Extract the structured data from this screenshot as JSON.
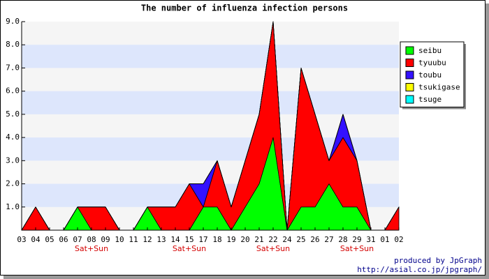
{
  "chart_data": {
    "type": "stacked_area",
    "title": "The number of influenza infection persons",
    "categories": [
      "03",
      "04",
      "05",
      "06",
      "07",
      "08",
      "09",
      "10",
      "11",
      "12",
      "13",
      "14",
      "15",
      "17",
      "18",
      "19",
      "20",
      "21",
      "22",
      "24",
      "25",
      "26",
      "27",
      "28",
      "29",
      "31",
      "01",
      "02"
    ],
    "category_sublabels": [
      null,
      null,
      null,
      null,
      null,
      "Sat+Sun",
      null,
      null,
      null,
      null,
      null,
      null,
      "Sat+Sun",
      null,
      null,
      null,
      null,
      null,
      "Sat+Sun",
      null,
      null,
      null,
      null,
      null,
      "Sat+Sun",
      null,
      null,
      null
    ],
    "series": [
      {
        "name": "seibu",
        "color": "#00ff00",
        "values": [
          0,
          0,
          0,
          0,
          1,
          0,
          0,
          0,
          0,
          1,
          0,
          0,
          0,
          1,
          1,
          0,
          1,
          2,
          4,
          0,
          1,
          1,
          2,
          1,
          1,
          0,
          0,
          0
        ]
      },
      {
        "name": "tyuubu",
        "color": "#ff0000",
        "values": [
          0,
          1,
          0,
          0,
          0,
          1,
          1,
          0,
          0,
          0,
          1,
          1,
          2,
          0,
          2,
          1,
          2,
          3,
          5,
          0,
          6,
          4,
          1,
          3,
          2,
          0,
          0,
          1
        ]
      },
      {
        "name": "toubu",
        "color": "#3311ff",
        "values": [
          0,
          0,
          0,
          0,
          0,
          0,
          0,
          0,
          0,
          0,
          0,
          0,
          0,
          1,
          0,
          0,
          0,
          0,
          0,
          0,
          0,
          0,
          0,
          1,
          0,
          0,
          0,
          0
        ]
      },
      {
        "name": "tsukigase",
        "color": "#ffff00",
        "values": [
          0,
          0,
          0,
          0,
          0,
          0,
          0,
          0,
          0,
          0,
          0,
          0,
          0,
          0,
          0,
          0,
          0,
          0,
          0,
          0,
          0,
          0,
          0,
          0,
          0,
          0,
          0,
          0
        ]
      },
      {
        "name": "tsuge",
        "color": "#00ffff",
        "values": [
          0,
          0,
          0,
          0,
          0,
          0,
          0,
          0,
          0,
          0,
          0,
          0,
          0,
          0,
          0,
          0,
          0,
          0,
          0,
          0,
          0,
          0,
          0,
          0,
          0,
          0,
          0,
          0
        ]
      }
    ],
    "ylim": [
      0,
      9
    ],
    "yticks": [
      {
        "value": 1,
        "label": "1.0"
      },
      {
        "value": 2,
        "label": "2.0"
      },
      {
        "value": 3,
        "label": "3.0"
      },
      {
        "value": 4,
        "label": "4.0"
      },
      {
        "value": 5,
        "label": "5.0"
      },
      {
        "value": 6,
        "label": "6.0"
      },
      {
        "value": 7,
        "label": "7.0"
      },
      {
        "value": 8,
        "label": "8.0"
      },
      {
        "value": 9,
        "label": "9.0"
      }
    ],
    "grid": true,
    "legend": "right",
    "footer": [
      "produced by JpGraph",
      "http://asial.co.jp/jpgraph/"
    ]
  }
}
